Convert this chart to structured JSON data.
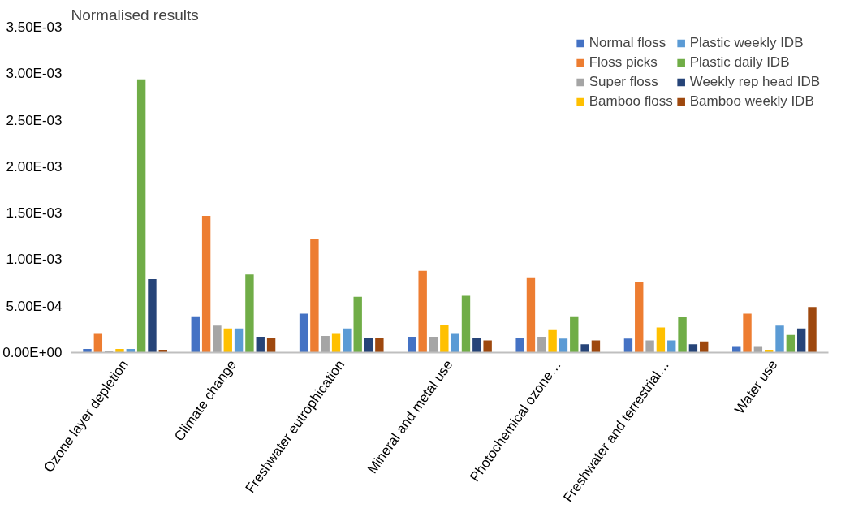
{
  "chart_data": {
    "type": "bar",
    "ylabel": "Normalised results",
    "categories": [
      "Ozone layer depletion",
      "Climate change",
      "Freshwater eutrophication",
      "Mineral and metal use",
      "Photochemical ozone…",
      "Freshwater and terrestrial…",
      "Water use"
    ],
    "series": [
      {
        "name": "Normal floss",
        "color": "#4472c4",
        "values": [
          4e-05,
          0.00039,
          0.00042,
          0.00017,
          0.00016,
          0.00015,
          7e-05
        ]
      },
      {
        "name": "Floss picks",
        "color": "#ed7d31",
        "values": [
          0.00021,
          0.00147,
          0.00122,
          0.00088,
          0.00081,
          0.00076,
          0.00042
        ]
      },
      {
        "name": "Super floss",
        "color": "#a5a5a5",
        "values": [
          2e-05,
          0.00029,
          0.00018,
          0.00017,
          0.00017,
          0.00013,
          7e-05
        ]
      },
      {
        "name": "Bamboo floss",
        "color": "#ffc000",
        "values": [
          4e-05,
          0.00026,
          0.00021,
          0.0003,
          0.00025,
          0.00027,
          3e-05
        ]
      },
      {
        "name": "Plastic weekly IDB",
        "color": "#5b9bd5",
        "values": [
          4e-05,
          0.00026,
          0.00026,
          0.00021,
          0.00015,
          0.00013,
          0.00029
        ]
      },
      {
        "name": "Plastic daily IDB",
        "color": "#70ad47",
        "values": [
          0.00294,
          0.00084,
          0.0006,
          0.00061,
          0.00039,
          0.00038,
          0.00019
        ]
      },
      {
        "name": "Weekly rep head IDB",
        "color": "#264478",
        "values": [
          0.00079,
          0.00017,
          0.00016,
          0.00016,
          9e-05,
          9e-05,
          0.00026
        ]
      },
      {
        "name": "Bamboo weekly IDB",
        "color": "#9e480e",
        "values": [
          3e-05,
          0.00016,
          0.00016,
          0.00013,
          0.00013,
          0.00012,
          0.00049
        ]
      }
    ],
    "ylim": [
      0,
      0.0035
    ],
    "yticks": [
      {
        "value": 0,
        "label": "0.00E+00"
      },
      {
        "value": 0.0005,
        "label": "5.00E-04"
      },
      {
        "value": 0.001,
        "label": "1.00E-03"
      },
      {
        "value": 0.0015,
        "label": "1.50E-03"
      },
      {
        "value": 0.002,
        "label": "2.00E-03"
      },
      {
        "value": 0.0025,
        "label": "2.50E-03"
      },
      {
        "value": 0.003,
        "label": "3.00E-03"
      },
      {
        "value": 0.0035,
        "label": "3.50E-03"
      }
    ],
    "grid": false,
    "legend": "top right"
  }
}
